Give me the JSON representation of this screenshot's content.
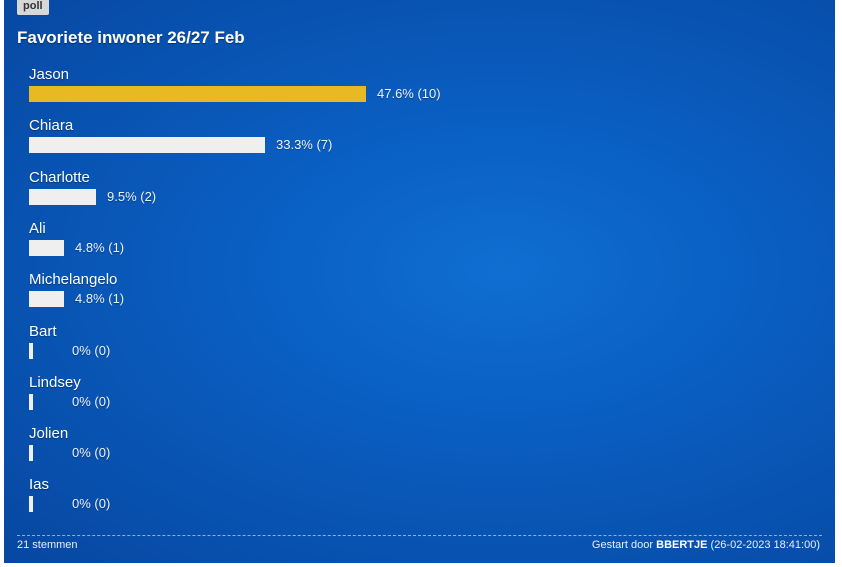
{
  "tag": "poll",
  "title": "Favoriete inwoner 26/27 Feb",
  "colors": {
    "leader_bar": "#e8b923",
    "bar": "#efefef",
    "panel": "#0a5fc3"
  },
  "options": [
    {
      "name": "Jason",
      "fraction": 0.476,
      "result": "47.6% (10)"
    },
    {
      "name": "Chiara",
      "fraction": 0.333,
      "result": "33.3% (7)"
    },
    {
      "name": "Charlotte",
      "fraction": 0.095,
      "result": "9.5% (2)"
    },
    {
      "name": "Ali",
      "fraction": 0.048,
      "result": "4.8% (1)"
    },
    {
      "name": "Michelangelo",
      "fraction": 0.048,
      "result": "4.8% (1)"
    },
    {
      "name": "Bart",
      "fraction": 0,
      "result": "0% (0)"
    },
    {
      "name": "Lindsey",
      "fraction": 0,
      "result": "0% (0)"
    },
    {
      "name": "Jolien",
      "fraction": 0,
      "result": "0% (0)"
    },
    {
      "name": "Ias",
      "fraction": 0,
      "result": "0% (0)"
    }
  ],
  "footer": {
    "votes": "21 stemmen",
    "started_prefix": "Gestart door",
    "author": "BBERTJE",
    "started_date": "(26-02-2023 18:41:00)"
  }
}
